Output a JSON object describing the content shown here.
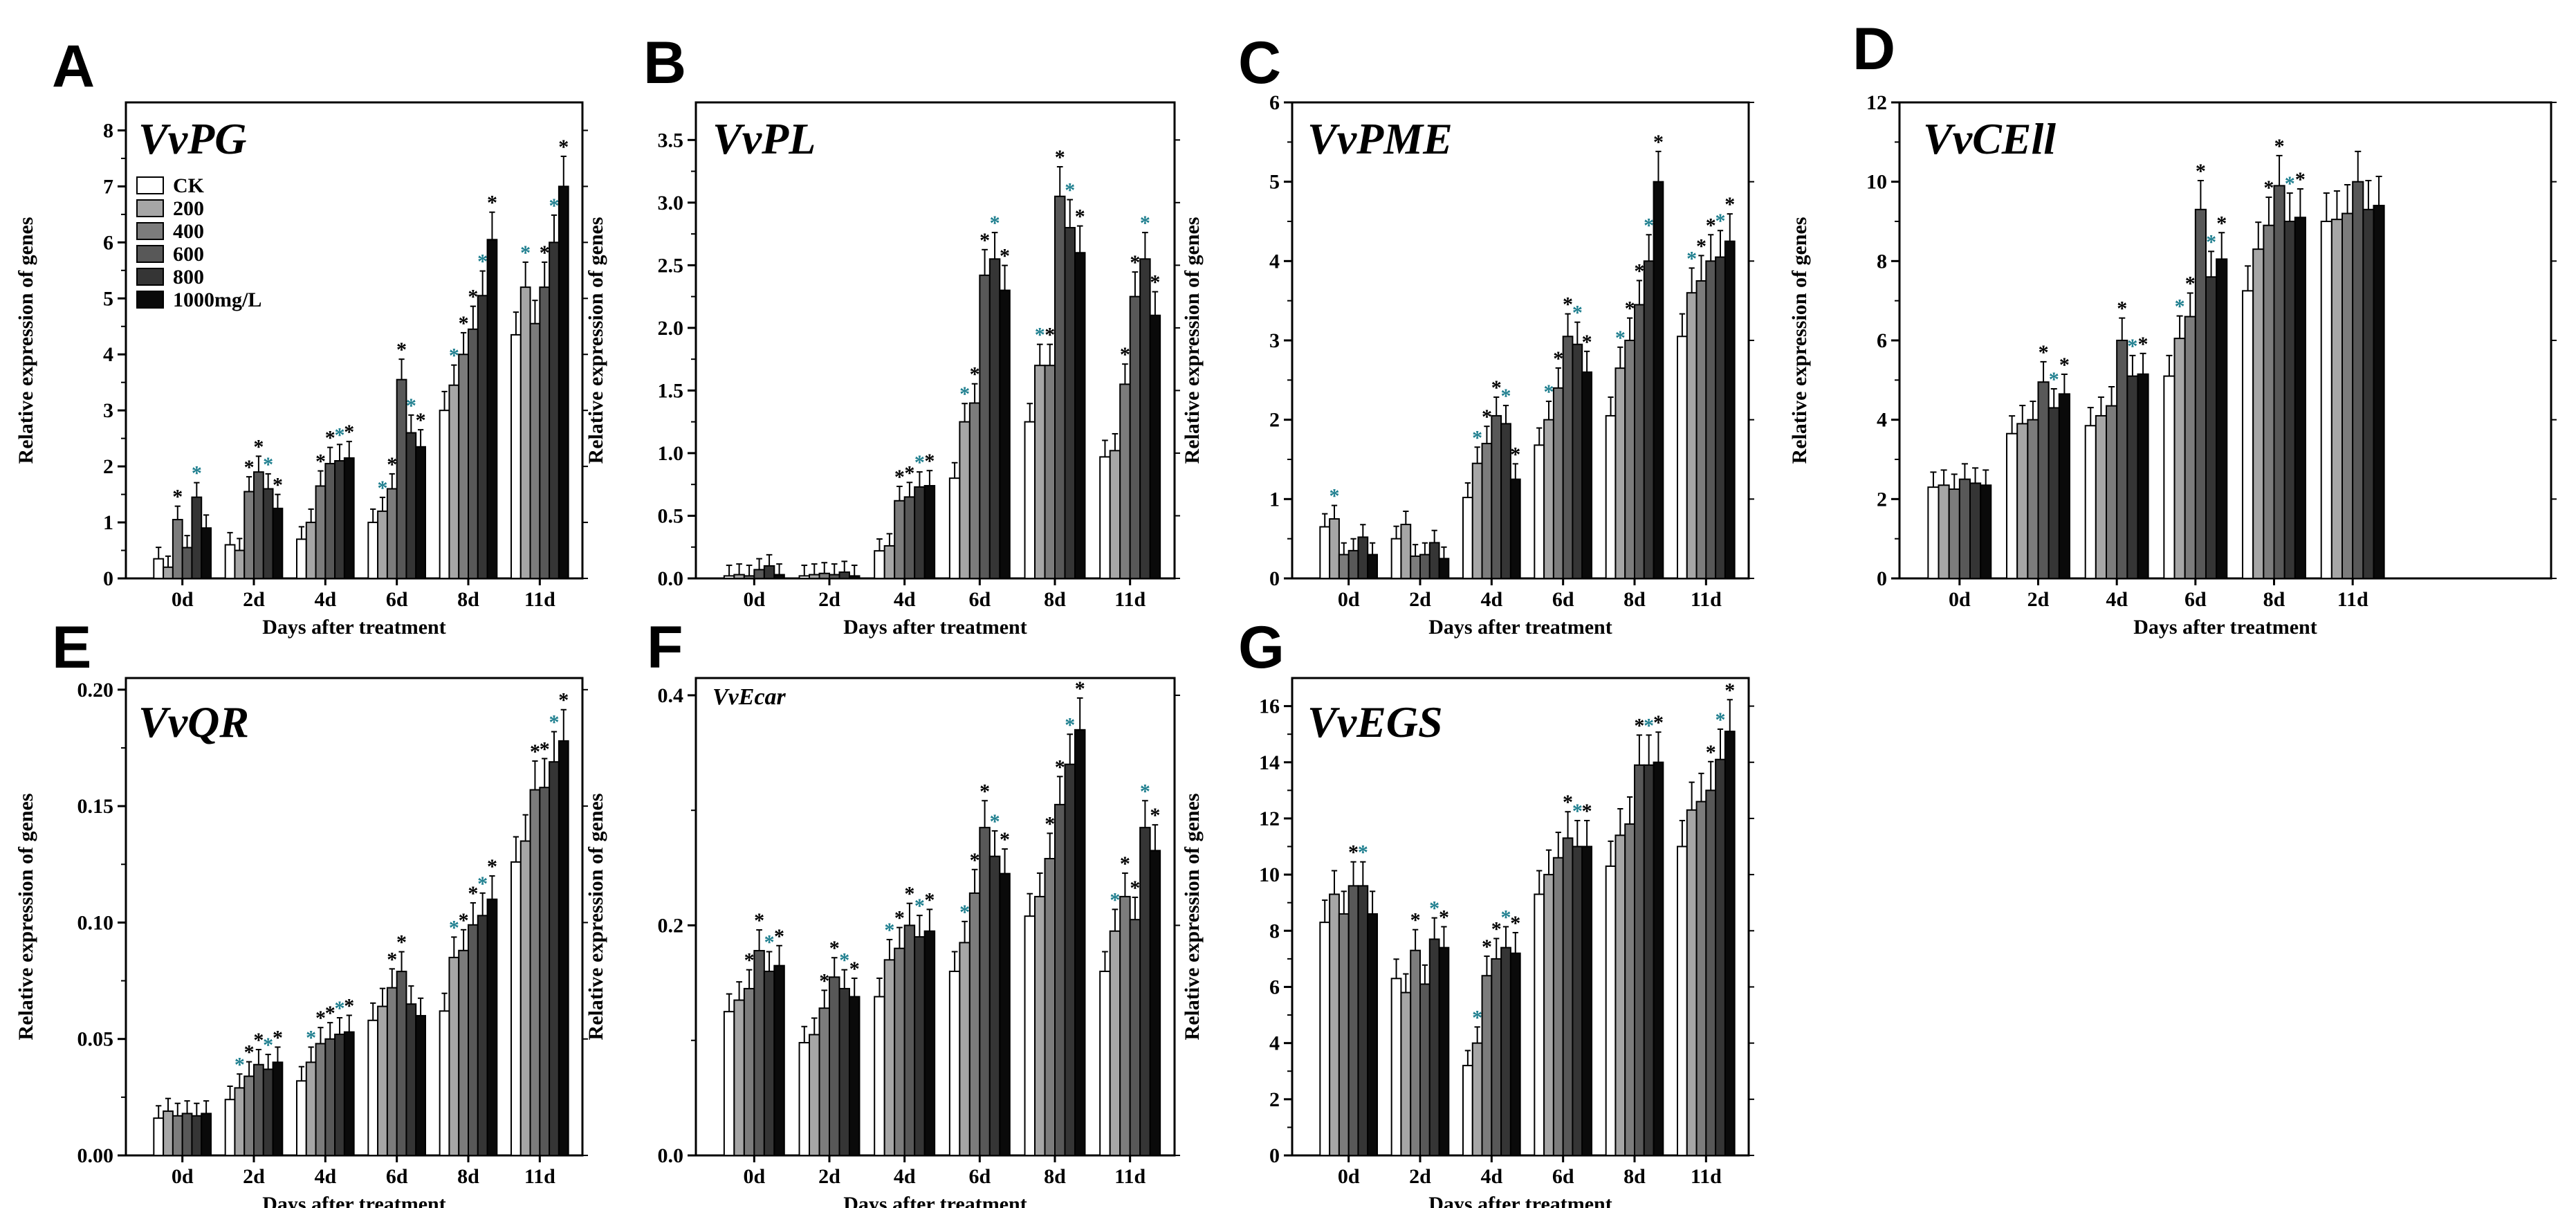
{
  "chart_data": [
    {
      "type": "bar",
      "panel": "A",
      "title": "VvPG",
      "xlabel": "Days after treatment",
      "ylabel": "Relative expression of genes",
      "categories": [
        "0d",
        "2d",
        "4d",
        "6d",
        "8d",
        "11d"
      ],
      "ylim": [
        0,
        8.5
      ],
      "yticks": [
        "0",
        "1",
        "2",
        "3",
        "4",
        "5",
        "6",
        "7",
        "8"
      ],
      "legend": [
        "CK",
        "200",
        "400",
        "600",
        "800",
        "1000mg/L"
      ],
      "series": [
        {
          "name": "CK",
          "values": [
            0.35,
            0.6,
            0.7,
            1.0,
            3.0,
            4.35
          ]
        },
        {
          "name": "200",
          "values": [
            0.2,
            0.5,
            1.0,
            1.2,
            3.45,
            5.2
          ]
        },
        {
          "name": "400",
          "values": [
            1.05,
            1.55,
            1.65,
            1.6,
            4.0,
            4.55
          ]
        },
        {
          "name": "600",
          "values": [
            0.55,
            1.9,
            2.05,
            3.55,
            4.45,
            5.2
          ]
        },
        {
          "name": "800",
          "values": [
            1.45,
            1.6,
            2.1,
            2.6,
            5.05,
            6.0
          ]
        },
        {
          "name": "1000mg/L",
          "values": [
            0.9,
            1.25,
            2.15,
            2.35,
            6.05,
            7.0
          ]
        }
      ]
    },
    {
      "type": "bar",
      "panel": "B",
      "title": "VvPL",
      "xlabel": "Days after treatment",
      "ylabel": "Relative expression of genes",
      "categories": [
        "0d",
        "2d",
        "4d",
        "6d",
        "8d",
        "11d"
      ],
      "ylim": [
        0,
        3.8
      ],
      "yticks": [
        "0.0",
        "0.5",
        "1.0",
        "1.5",
        "2.0",
        "2.5",
        "3.0",
        "3.5"
      ],
      "series": [
        {
          "name": "CK",
          "values": [
            0.02,
            0.02,
            0.22,
            0.8,
            1.25,
            0.97
          ]
        },
        {
          "name": "200",
          "values": [
            0.03,
            0.03,
            0.26,
            1.25,
            1.7,
            1.02
          ]
        },
        {
          "name": "400",
          "values": [
            0.02,
            0.04,
            0.62,
            1.4,
            1.7,
            1.55
          ]
        },
        {
          "name": "600",
          "values": [
            0.07,
            0.03,
            0.65,
            2.42,
            3.05,
            2.25
          ]
        },
        {
          "name": "800",
          "values": [
            0.1,
            0.05,
            0.73,
            2.55,
            2.8,
            2.55
          ]
        },
        {
          "name": "1000mg/L",
          "values": [
            0.03,
            0.02,
            0.74,
            2.3,
            2.6,
            2.1
          ]
        }
      ]
    },
    {
      "type": "bar",
      "panel": "C",
      "title": "VvPME",
      "xlabel": "Days after treatment",
      "ylabel": "Relative expression of genes",
      "categories": [
        "0d",
        "2d",
        "4d",
        "6d",
        "8d",
        "11d"
      ],
      "ylim": [
        0,
        6
      ],
      "yticks": [
        "0",
        "1",
        "2",
        "3",
        "4",
        "5",
        "6"
      ],
      "series": [
        {
          "name": "CK",
          "values": [
            0.65,
            0.5,
            1.02,
            1.68,
            2.05,
            3.05
          ]
        },
        {
          "name": "200",
          "values": [
            0.75,
            0.68,
            1.45,
            2.0,
            2.65,
            3.6
          ]
        },
        {
          "name": "400",
          "values": [
            0.3,
            0.28,
            1.7,
            2.4,
            3.0,
            3.75
          ]
        },
        {
          "name": "600",
          "values": [
            0.35,
            0.3,
            2.05,
            3.05,
            3.45,
            4.0
          ]
        },
        {
          "name": "800",
          "values": [
            0.52,
            0.45,
            1.95,
            2.95,
            4.0,
            4.05
          ]
        },
        {
          "name": "1000mg/L",
          "values": [
            0.3,
            0.25,
            1.25,
            2.6,
            5.0,
            4.25
          ]
        }
      ]
    },
    {
      "type": "bar",
      "panel": "D",
      "title": "VvCEll",
      "xlabel": "Days after treatment",
      "ylabel": "Relative expression of genes",
      "categories": [
        "0d",
        "2d",
        "4d",
        "6d",
        "8d",
        "11d"
      ],
      "ylim": [
        0,
        12
      ],
      "yticks": [
        "0",
        "2",
        "4",
        "6",
        "8",
        "10",
        "12"
      ],
      "series": [
        {
          "name": "CK",
          "values": [
            2.3,
            3.65,
            3.85,
            5.1,
            7.25,
            9.0
          ]
        },
        {
          "name": "200",
          "values": [
            2.35,
            3.9,
            4.1,
            6.05,
            8.3,
            9.05
          ]
        },
        {
          "name": "400",
          "values": [
            2.25,
            4.0,
            4.35,
            6.6,
            8.9,
            9.2
          ]
        },
        {
          "name": "600",
          "values": [
            2.5,
            4.95,
            6.0,
            9.3,
            9.9,
            10.0
          ]
        },
        {
          "name": "800",
          "values": [
            2.4,
            4.3,
            5.1,
            7.6,
            9.0,
            9.3
          ]
        },
        {
          "name": "1000mg/L",
          "values": [
            2.35,
            4.65,
            5.15,
            8.05,
            9.1,
            9.4
          ]
        }
      ]
    },
    {
      "type": "bar",
      "panel": "E",
      "title": "VvQR",
      "xlabel": "Days after treatment",
      "ylabel": "Relative expression of genes",
      "categories": [
        "0d",
        "2d",
        "4d",
        "6d",
        "8d",
        "11d"
      ],
      "ylim": [
        0,
        0.205
      ],
      "yticks": [
        "0.00",
        "0.05",
        "0.10",
        "0.15",
        "0.20"
      ],
      "series": [
        {
          "name": "CK",
          "values": [
            0.016,
            0.024,
            0.032,
            0.058,
            0.062,
            0.126
          ]
        },
        {
          "name": "200",
          "values": [
            0.019,
            0.029,
            0.04,
            0.064,
            0.085,
            0.135
          ]
        },
        {
          "name": "400",
          "values": [
            0.017,
            0.034,
            0.048,
            0.072,
            0.088,
            0.157
          ]
        },
        {
          "name": "600",
          "values": [
            0.018,
            0.039,
            0.05,
            0.079,
            0.099,
            0.158
          ]
        },
        {
          "name": "800",
          "values": [
            0.017,
            0.037,
            0.052,
            0.065,
            0.103,
            0.169
          ]
        },
        {
          "name": "1000mg/L",
          "values": [
            0.018,
            0.04,
            0.053,
            0.06,
            0.11,
            0.178
          ]
        }
      ]
    },
    {
      "type": "bar",
      "panel": "F",
      "title": "VvEcar",
      "xlabel": "Days after treatment",
      "ylabel": "Relative expression of genes",
      "categories": [
        "0d",
        "2d",
        "4d",
        "6d",
        "8d",
        "11d"
      ],
      "ylim": [
        0,
        0.415
      ],
      "yticks": [
        "0.0",
        "0.2",
        "0.4"
      ],
      "series": [
        {
          "name": "CK",
          "values": [
            0.125,
            0.098,
            0.138,
            0.16,
            0.208,
            0.16
          ]
        },
        {
          "name": "200",
          "values": [
            0.135,
            0.105,
            0.17,
            0.185,
            0.225,
            0.195
          ]
        },
        {
          "name": "400",
          "values": [
            0.145,
            0.128,
            0.18,
            0.228,
            0.258,
            0.225
          ]
        },
        {
          "name": "600",
          "values": [
            0.178,
            0.155,
            0.2,
            0.285,
            0.305,
            0.205
          ]
        },
        {
          "name": "800",
          "values": [
            0.16,
            0.145,
            0.19,
            0.26,
            0.34,
            0.285
          ]
        },
        {
          "name": "1000mg/L",
          "values": [
            0.165,
            0.138,
            0.195,
            0.245,
            0.37,
            0.265
          ]
        }
      ]
    },
    {
      "type": "bar",
      "panel": "G",
      "title": "VvEGS",
      "xlabel": "Days after treatment",
      "ylabel": "Relative expression of genes",
      "categories": [
        "0d",
        "2d",
        "4d",
        "6d",
        "8d",
        "11d"
      ],
      "ylim": [
        0,
        17
      ],
      "yticks": [
        "0",
        "2",
        "4",
        "6",
        "8",
        "10",
        "12",
        "14",
        "16"
      ],
      "series": [
        {
          "name": "CK",
          "values": [
            8.3,
            6.3,
            3.2,
            9.3,
            10.3,
            11.0
          ]
        },
        {
          "name": "200",
          "values": [
            9.3,
            5.8,
            4.0,
            10.0,
            11.4,
            12.3
          ]
        },
        {
          "name": "400",
          "values": [
            8.6,
            7.3,
            6.4,
            10.6,
            11.8,
            12.6
          ]
        },
        {
          "name": "600",
          "values": [
            9.6,
            6.1,
            7.0,
            11.3,
            13.9,
            13.0
          ]
        },
        {
          "name": "800",
          "values": [
            9.6,
            7.7,
            7.4,
            11.0,
            13.9,
            14.1
          ]
        },
        {
          "name": "1000mg/L",
          "values": [
            8.6,
            7.4,
            7.2,
            11.0,
            14.0,
            15.1
          ]
        }
      ]
    }
  ],
  "significance_mark": "*",
  "colors": {
    "series": [
      "#ffffff",
      "#a6a6a6",
      "#7c7c7c",
      "#585858",
      "#353535",
      "#0a0a0a"
    ],
    "star_black": "#000000",
    "star_teal": "#1f7f8f",
    "star_orange": "#c0601a"
  }
}
